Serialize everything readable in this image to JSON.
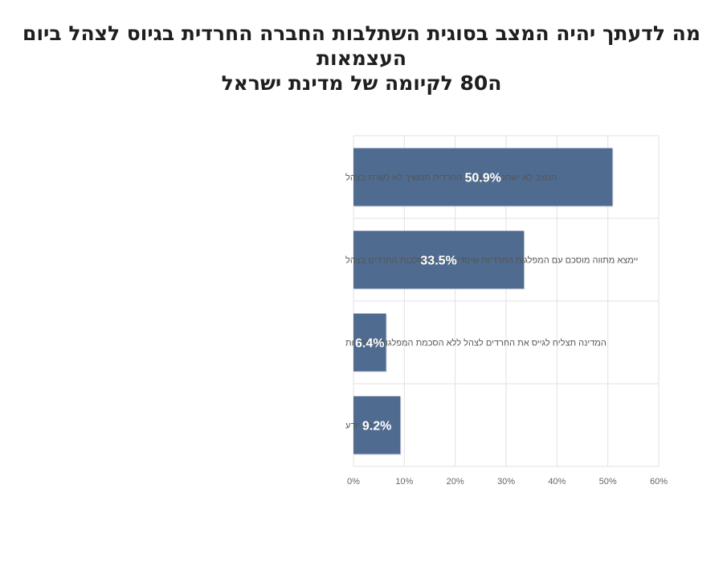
{
  "chart_data": {
    "type": "bar",
    "orientation": "horizontal",
    "title": [
      "מה לדעתך יהיה המצב בסוגית השתלבות החברה החרדית בגיוס לצהל ביום העצמאות",
      "ה80 לקיומה של מדינת ישראל"
    ],
    "categories": [
      "המצב לא ישתנה והחברה החרדית תמשיך לא לשרת בצהל",
      "יימצא מתווה מוסכם עם המפלגות החרדיות שיסדיר את השתלבות החרדים בצהל",
      "המדינה תצליח לגייס את החרדים לצהל ללא הסכמת המפלגות החרדיות",
      "לא יודע"
    ],
    "values": [
      50.9,
      33.5,
      6.4,
      9.2
    ],
    "data_labels": [
      "50.9%",
      "33.5%",
      "6.4%",
      "9.2%"
    ],
    "xlim": [
      0,
      60
    ],
    "x_ticks": [
      "0%",
      "10%",
      "20%",
      "30%",
      "40%",
      "50%",
      "60%"
    ],
    "bar_color": "#4f6b8f",
    "grid": true,
    "legend": "none"
  }
}
